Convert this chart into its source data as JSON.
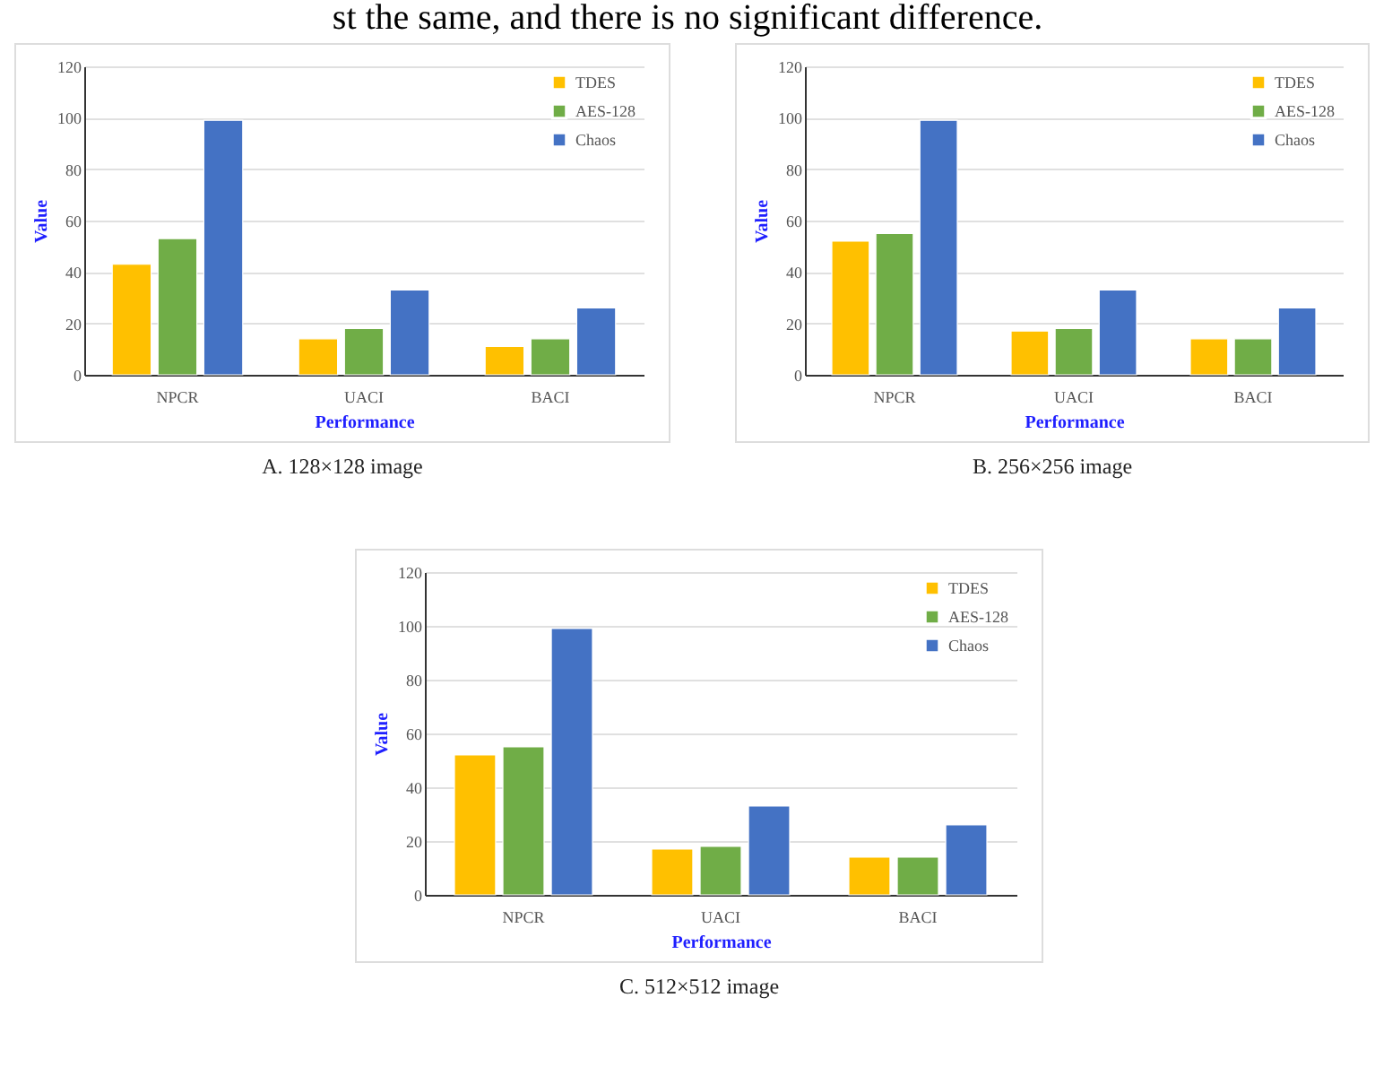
{
  "chart_data": [
    {
      "type": "bar",
      "xlabel": "Performance",
      "ylabel": "Value",
      "categories": [
        "NPCR",
        "UACI",
        "BACI"
      ],
      "ylim": [
        0,
        120
      ],
      "yticks": [
        0,
        20,
        40,
        60,
        80,
        100,
        120
      ],
      "grid": "y",
      "legend": "top right",
      "annotations": [
        "st the same, and there is no significant difference.",
        "A. 128×128 image"
      ],
      "series": [
        {
          "name": "TDES",
          "color": "#ffc000",
          "values": [
            43,
            14,
            11
          ]
        },
        {
          "name": "AES-128",
          "color": "#70ad47",
          "values": [
            53,
            18,
            14
          ]
        },
        {
          "name": "Chaos",
          "color": "#4472c4",
          "values": [
            99,
            33,
            26
          ]
        }
      ]
    },
    {
      "type": "bar",
      "xlabel": "Performance",
      "ylabel": "Value",
      "categories": [
        "NPCR",
        "UACI",
        "BACI"
      ],
      "ylim": [
        0,
        120
      ],
      "yticks": [
        0,
        20,
        40,
        60,
        80,
        100,
        120
      ],
      "grid": "y",
      "legend": "top right",
      "annotations": [
        "B. 256×256 image"
      ],
      "series": [
        {
          "name": "TDES",
          "color": "#ffc000",
          "values": [
            52,
            17,
            14
          ]
        },
        {
          "name": "AES-128",
          "color": "#70ad47",
          "values": [
            55,
            18,
            14
          ]
        },
        {
          "name": "Chaos",
          "color": "#4472c4",
          "values": [
            99,
            33,
            26
          ]
        }
      ]
    },
    {
      "type": "bar",
      "xlabel": "Performance",
      "ylabel": "Value",
      "categories": [
        "NPCR",
        "UACI",
        "BACI"
      ],
      "ylim": [
        0,
        120
      ],
      "yticks": [
        0,
        20,
        40,
        60,
        80,
        100,
        120
      ],
      "grid": "y",
      "legend": "top right",
      "annotations": [
        "C. 512×512 image"
      ],
      "series": [
        {
          "name": "TDES",
          "color": "#ffc000",
          "values": [
            52,
            17,
            14
          ]
        },
        {
          "name": "AES-128",
          "color": "#70ad47",
          "values": [
            55,
            18,
            14
          ]
        },
        {
          "name": "Chaos",
          "color": "#4472c4",
          "values": [
            99,
            33,
            26
          ]
        }
      ]
    }
  ]
}
